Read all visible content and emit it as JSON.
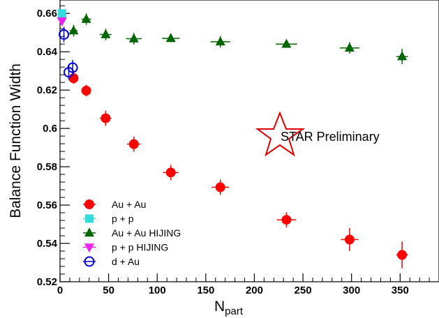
{
  "chart_data": {
    "type": "scatter",
    "xlabel": "N",
    "xlabel_sub": "part",
    "ylabel": "Balance Function Width",
    "xlim": [
      0,
      390
    ],
    "ylim": [
      0.52,
      0.667
    ],
    "x_ticks": [
      0,
      50,
      100,
      150,
      200,
      250,
      300,
      350
    ],
    "y_ticks": [
      0.52,
      0.54,
      0.56,
      0.58,
      0.6,
      0.62,
      0.64,
      0.66
    ],
    "grid": false,
    "legend_position": "bottom-left",
    "annotation": "STAR Preliminary",
    "series": [
      {
        "name": "Au + Au",
        "marker": "circle-filled",
        "color": "#ff0000",
        "points": [
          {
            "x": 14,
            "y": 0.6262,
            "yerr": 0.003,
            "xerr": 4
          },
          {
            "x": 27,
            "y": 0.6197,
            "yerr": 0.003,
            "xerr": 5
          },
          {
            "x": 47,
            "y": 0.6053,
            "yerr": 0.004,
            "xerr": 6
          },
          {
            "x": 76,
            "y": 0.5918,
            "yerr": 0.004,
            "xerr": 7
          },
          {
            "x": 114,
            "y": 0.577,
            "yerr": 0.004,
            "xerr": 8
          },
          {
            "x": 165,
            "y": 0.5693,
            "yerr": 0.004,
            "xerr": 9
          },
          {
            "x": 233,
            "y": 0.5523,
            "yerr": 0.004,
            "xerr": 10
          },
          {
            "x": 298,
            "y": 0.542,
            "yerr": 0.006,
            "xerr": 9
          },
          {
            "x": 352,
            "y": 0.534,
            "yerr": 0.007,
            "xerr": 6
          }
        ]
      },
      {
        "name": "p + p",
        "marker": "square-filled",
        "color": "#33dddd",
        "points": [
          {
            "x": 2,
            "y": 0.66,
            "yerr": 0.002,
            "xerr": 0
          }
        ]
      },
      {
        "name": "Au + Au HIJING",
        "marker": "triangle-up-filled",
        "color": "#006400",
        "points": [
          {
            "x": 14,
            "y": 0.651,
            "yerr": 0.003,
            "xerr": 4
          },
          {
            "x": 27,
            "y": 0.657,
            "yerr": 0.003,
            "xerr": 5
          },
          {
            "x": 47,
            "y": 0.649,
            "yerr": 0.003,
            "xerr": 6
          },
          {
            "x": 76,
            "y": 0.6468,
            "yerr": 0.003,
            "xerr": 8
          },
          {
            "x": 114,
            "y": 0.647,
            "yerr": 0.002,
            "xerr": 9
          },
          {
            "x": 165,
            "y": 0.6452,
            "yerr": 0.003,
            "xerr": 10
          },
          {
            "x": 233,
            "y": 0.644,
            "yerr": 0.002,
            "xerr": 11
          },
          {
            "x": 298,
            "y": 0.642,
            "yerr": 0.003,
            "xerr": 10
          },
          {
            "x": 352,
            "y": 0.6375,
            "yerr": 0.004,
            "xerr": 6
          }
        ]
      },
      {
        "name": "p + p HIJING",
        "marker": "triangle-down-filled",
        "color": "#ee22ee",
        "points": [
          {
            "x": 2,
            "y": 0.656,
            "yerr": 0.002,
            "xerr": 0
          }
        ]
      },
      {
        "name": "d + Au",
        "marker": "circle-open",
        "color": "#0000dd",
        "points": [
          {
            "x": 4,
            "y": 0.649,
            "yerr": 0.004,
            "xerr": 0
          },
          {
            "x": 9,
            "y": 0.6293,
            "yerr": 0.004,
            "xerr": 0
          },
          {
            "x": 13,
            "y": 0.6317,
            "yerr": 0.004,
            "xerr": 0
          }
        ]
      }
    ]
  }
}
